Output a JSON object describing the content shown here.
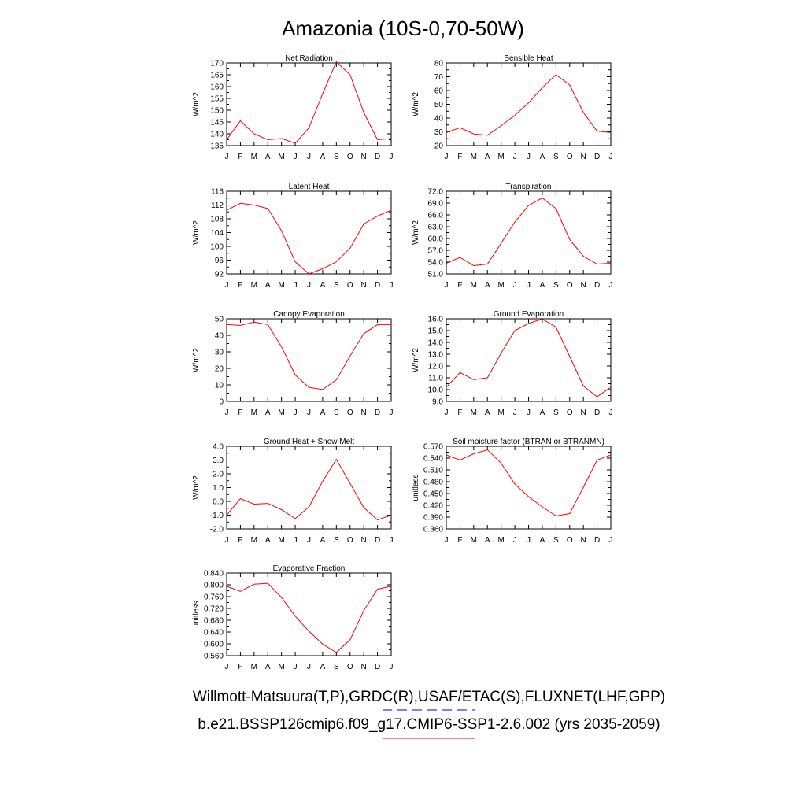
{
  "title": "Amazonia (10S-0,70-50W)",
  "month_labels": [
    "J",
    "F",
    "M",
    "A",
    "M",
    "J",
    "J",
    "A",
    "S",
    "O",
    "N",
    "D",
    "J"
  ],
  "colors": {
    "model": "#ff0000",
    "obs": "#0000ff",
    "axis": "#000000"
  },
  "legend": {
    "obs_label": "Willmott-Matsuura(T,P),GRDC(R),USAF/ETAC(S),FLUXNET(LHF,GPP)",
    "model_label": "b.e21.BSSP126cmip6.f09_g17.CMIP6-SSP1-2.6.002 (yrs 2035-2059)"
  },
  "chart_data": [
    {
      "type": "line",
      "title": "Net Radiation",
      "ylabel": "W/m^2",
      "ylim": [
        135,
        170
      ],
      "yticks": [
        "135",
        "140",
        "145",
        "150",
        "155",
        "160",
        "165",
        "170"
      ],
      "values": [
        137.5,
        145.5,
        140,
        137.5,
        138,
        136,
        142.5,
        157,
        170.5,
        165,
        149,
        137.5,
        138
      ]
    },
    {
      "type": "line",
      "title": "Sensible Heat",
      "ylabel": "W/m^2",
      "ylim": [
        20,
        80
      ],
      "yticks": [
        "20",
        "30",
        "40",
        "50",
        "60",
        "70",
        "80"
      ],
      "values": [
        29.5,
        33,
        28.5,
        27.5,
        34.5,
        42,
        51,
        62,
        71.5,
        64,
        44,
        30.5,
        29.5
      ]
    },
    {
      "type": "line",
      "title": "Latent Heat",
      "ylabel": "W/m^2",
      "ylim": [
        92,
        116
      ],
      "yticks": [
        "92",
        "96",
        "100",
        "104",
        "108",
        "112",
        "116"
      ],
      "values": [
        110.5,
        112.5,
        112,
        111,
        104.5,
        95.5,
        92,
        93.5,
        95.5,
        99.5,
        106.5,
        108.8,
        110.5
      ]
    },
    {
      "type": "line",
      "title": "Transpiration",
      "ylabel": "W/m^2",
      "ylim": [
        51,
        72
      ],
      "yticks": [
        "51.0",
        "54.0",
        "57.0",
        "60.0",
        "63.0",
        "66.0",
        "69.0",
        "72.0"
      ],
      "values": [
        53.7,
        55.2,
        53.1,
        53.5,
        58.8,
        64.2,
        68.4,
        70.3,
        67.6,
        59.7,
        55.5,
        53.5,
        53.7
      ]
    },
    {
      "type": "line",
      "title": "Canopy Evaporation",
      "ylabel": "W/m^2",
      "ylim": [
        0,
        50
      ],
      "yticks": [
        "0",
        "10",
        "20",
        "30",
        "40",
        "50"
      ],
      "values": [
        46.5,
        46,
        48,
        46.5,
        33,
        16,
        8.5,
        7.2,
        13,
        27.5,
        41,
        46.5,
        46.5
      ]
    },
    {
      "type": "line",
      "title": "Ground Evaporation",
      "ylabel": "W/m^2",
      "ylim": [
        9,
        16
      ],
      "yticks": [
        "9.0",
        "10.0",
        "11.0",
        "12.0",
        "13.0",
        "14.0",
        "15.0",
        "16.0"
      ],
      "values": [
        10.2,
        11.45,
        10.85,
        11.0,
        13.1,
        15.0,
        15.6,
        15.98,
        15.3,
        12.8,
        10.3,
        9.4,
        10.2
      ]
    },
    {
      "type": "line",
      "title": "Ground Heat + Snow Melt",
      "ylabel": "W/m^2",
      "ylim": [
        -2,
        4
      ],
      "yticks": [
        "-2.0",
        "-1.0",
        "0.0",
        "1.0",
        "2.0",
        "3.0",
        "4.0"
      ],
      "values": [
        -1.0,
        0.2,
        -0.2,
        -0.15,
        -0.6,
        -1.25,
        -0.4,
        1.45,
        3.05,
        1.3,
        -0.45,
        -1.35,
        -1.0
      ]
    },
    {
      "type": "line",
      "title": "Soil moisture factor (BTRAN or BTRANMN)",
      "ylabel": "unitless",
      "ylim": [
        0.36,
        0.57
      ],
      "yticks": [
        "0.360",
        "0.390",
        "0.420",
        "0.450",
        "0.480",
        "0.510",
        "0.540",
        "0.570"
      ],
      "values": [
        0.548,
        0.535,
        0.551,
        0.561,
        0.527,
        0.474,
        0.442,
        0.416,
        0.393,
        0.399,
        0.466,
        0.535,
        0.548
      ]
    },
    {
      "type": "line",
      "title": "Evaporative Fraction",
      "ylabel": "unitless",
      "ylim": [
        0.56,
        0.84
      ],
      "yticks": [
        "0.560",
        "0.600",
        "0.640",
        "0.680",
        "0.720",
        "0.760",
        "0.800",
        "0.840"
      ],
      "values": [
        0.795,
        0.778,
        0.802,
        0.805,
        0.757,
        0.694,
        0.643,
        0.599,
        0.571,
        0.614,
        0.713,
        0.785,
        0.795
      ]
    }
  ]
}
